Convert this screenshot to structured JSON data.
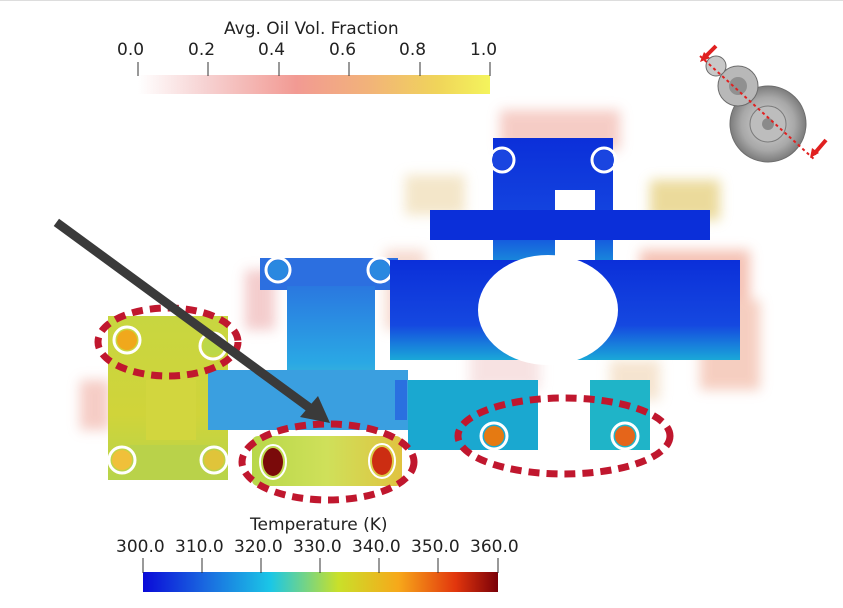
{
  "oil_colorbar": {
    "title": "Avg. Oil Vol. Fraction",
    "ticks": [
      "0.0",
      "0.2",
      "0.4",
      "0.6",
      "0.8",
      "1.0"
    ],
    "gradient": [
      "#ffffff",
      "#f7c6c6",
      "#f29a93",
      "#f2b27a",
      "#f0d45a",
      "#f2f25a"
    ]
  },
  "temp_colorbar": {
    "title": "Temperature (K)",
    "ticks": [
      "300.0",
      "310.0",
      "320.0",
      "330.0",
      "340.0",
      "350.0",
      "360.0"
    ],
    "gradient": [
      "#0a0ad8",
      "#1a6be0",
      "#1bc7e6",
      "#c9e02a",
      "#f7a81a",
      "#e2360d",
      "#7a0008"
    ]
  },
  "colors": {
    "highlight_ellipse": "#c0172e",
    "pointer_arrow": "#3a3a3a",
    "section_line": "#e02020"
  }
}
